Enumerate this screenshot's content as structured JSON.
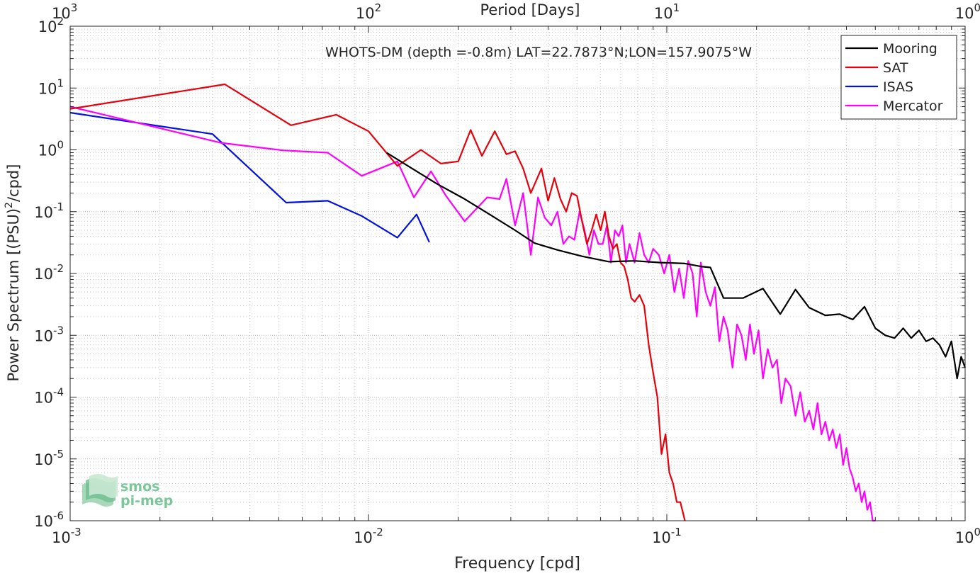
{
  "chart_data": {
    "type": "line",
    "title": "WHOTS-DM (depth =-0.8m) LAT=22.7873°N;LON=157.9075°W",
    "xlabel": "Frequency [cpd]",
    "ylabel": "Power Spectrum [(PSU)^2/cpd]",
    "ylabel_base": "Power Spectrum [(PSU)",
    "ylabel_sup": "2",
    "ylabel_tail": "/cpd]",
    "x2label": "Period [Days]",
    "xscale": "log",
    "yscale": "log",
    "xlim": [
      0.001,
      1
    ],
    "ylim": [
      1e-06,
      100
    ],
    "grid": true,
    "legend_position": "top-right",
    "x_ticks": [
      {
        "value": 0.001,
        "mant": "10",
        "exp": "-3"
      },
      {
        "value": 0.01,
        "mant": "10",
        "exp": "-2"
      },
      {
        "value": 0.1,
        "mant": "10",
        "exp": "-1"
      },
      {
        "value": 1,
        "mant": "10",
        "exp": "0"
      }
    ],
    "x2_ticks": [
      {
        "value": 0.001,
        "mant": "10",
        "exp": "3"
      },
      {
        "value": 0.01,
        "mant": "10",
        "exp": "2"
      },
      {
        "value": 0.1,
        "mant": "10",
        "exp": "1"
      },
      {
        "value": 1,
        "mant": "10",
        "exp": "0"
      }
    ],
    "y_ticks": [
      {
        "value": 1e-06,
        "mant": "10",
        "exp": "-6"
      },
      {
        "value": 1e-05,
        "mant": "10",
        "exp": "-5"
      },
      {
        "value": 0.0001,
        "mant": "10",
        "exp": "-4"
      },
      {
        "value": 0.001,
        "mant": "10",
        "exp": "-3"
      },
      {
        "value": 0.01,
        "mant": "10",
        "exp": "-2"
      },
      {
        "value": 0.1,
        "mant": "10",
        "exp": "-1"
      },
      {
        "value": 1,
        "mant": "10",
        "exp": "0"
      },
      {
        "value": 10,
        "mant": "10",
        "exp": "1"
      },
      {
        "value": 100,
        "mant": "10",
        "exp": "2"
      }
    ],
    "series": [
      {
        "name": "Mooring",
        "color": "#000000",
        "x": [
          0.0115,
          0.014,
          0.017,
          0.021,
          0.026,
          0.031,
          0.036,
          0.043,
          0.052,
          0.064,
          0.078,
          0.095,
          0.115,
          0.13,
          0.14,
          0.155,
          0.18,
          0.21,
          0.24,
          0.27,
          0.3,
          0.34,
          0.38,
          0.42,
          0.46,
          0.5,
          0.54,
          0.58,
          0.62,
          0.66,
          0.7,
          0.74,
          0.78,
          0.82,
          0.86,
          0.9,
          0.94,
          0.97,
          1.0
        ],
        "y": [
          0.9,
          0.5,
          0.28,
          0.16,
          0.085,
          0.05,
          0.031,
          0.024,
          0.019,
          0.0155,
          0.016,
          0.015,
          0.0145,
          0.013,
          0.0125,
          0.004,
          0.004,
          0.0057,
          0.0022,
          0.0055,
          0.0028,
          0.0021,
          0.0022,
          0.0018,
          0.0029,
          0.0013,
          0.001,
          0.0009,
          0.0013,
          0.0009,
          0.0012,
          0.0008,
          0.0009,
          0.0007,
          0.00045,
          0.0008,
          0.0002,
          0.00045,
          0.0003
        ]
      },
      {
        "name": "SAT",
        "color": "#e8000b",
        "x": [
          0.001,
          0.0033,
          0.0055,
          0.0078,
          0.01,
          0.0125,
          0.015,
          0.0175,
          0.02,
          0.022,
          0.024,
          0.0265,
          0.029,
          0.031,
          0.033,
          0.035,
          0.038,
          0.04,
          0.042,
          0.044,
          0.046,
          0.048,
          0.05,
          0.052,
          0.054,
          0.056,
          0.058,
          0.06,
          0.062,
          0.064,
          0.066,
          0.068,
          0.07,
          0.072,
          0.074,
          0.076,
          0.078,
          0.081,
          0.084,
          0.087,
          0.09,
          0.093,
          0.096,
          0.099,
          0.102,
          0.105,
          0.108,
          0.111,
          0.115
        ],
        "y": [
          4.6,
          11.5,
          2.5,
          3.7,
          2.0,
          0.55,
          1.0,
          0.6,
          0.65,
          2.1,
          0.8,
          2.0,
          0.85,
          0.95,
          0.5,
          0.2,
          0.5,
          0.15,
          0.35,
          0.16,
          0.1,
          0.2,
          0.18,
          0.07,
          0.03,
          0.05,
          0.09,
          0.05,
          0.1,
          0.04,
          0.025,
          0.03,
          0.015,
          0.013,
          0.008,
          0.004,
          0.0035,
          0.0045,
          0.003,
          0.0007,
          0.00025,
          0.0001,
          1.2e-05,
          2.5e-05,
          6e-06,
          4e-06,
          2e-06,
          2e-06,
          1e-06
        ]
      },
      {
        "name": "ISAS",
        "color": "#0011e0",
        "x": [
          0.001,
          0.003,
          0.0053,
          0.0073,
          0.0095,
          0.0125,
          0.0145,
          0.016
        ],
        "y": [
          4.0,
          1.8,
          0.14,
          0.15,
          0.085,
          0.038,
          0.09,
          0.032
        ]
      },
      {
        "name": "Mercator",
        "color": "#ff00ff",
        "x": [
          0.001,
          0.0032,
          0.0052,
          0.0073,
          0.0095,
          0.0125,
          0.0142,
          0.0162,
          0.0182,
          0.021,
          0.025,
          0.0275,
          0.029,
          0.031,
          0.033,
          0.035,
          0.037,
          0.039,
          0.041,
          0.043,
          0.045,
          0.047,
          0.049,
          0.051,
          0.053,
          0.055,
          0.057,
          0.059,
          0.061,
          0.063,
          0.065,
          0.067,
          0.069,
          0.071,
          0.073,
          0.075,
          0.078,
          0.081,
          0.084,
          0.087,
          0.09,
          0.094,
          0.098,
          0.102,
          0.106,
          0.11,
          0.114,
          0.118,
          0.122,
          0.126,
          0.13,
          0.135,
          0.14,
          0.145,
          0.15,
          0.155,
          0.16,
          0.166,
          0.172,
          0.178,
          0.184,
          0.19,
          0.196,
          0.203,
          0.21,
          0.218,
          0.226,
          0.234,
          0.242,
          0.25,
          0.26,
          0.27,
          0.28,
          0.29,
          0.3,
          0.31,
          0.32,
          0.33,
          0.34,
          0.35,
          0.36,
          0.37,
          0.38,
          0.39,
          0.4,
          0.41,
          0.42,
          0.43,
          0.44,
          0.45,
          0.46,
          0.47,
          0.48,
          0.49,
          0.5
        ],
        "y": [
          5.0,
          1.3,
          0.98,
          0.9,
          0.38,
          0.65,
          0.17,
          0.45,
          0.18,
          0.07,
          0.17,
          0.16,
          0.34,
          0.06,
          0.2,
          0.02,
          0.17,
          0.08,
          0.06,
          0.1,
          0.03,
          0.04,
          0.035,
          0.1,
          0.05,
          0.02,
          0.05,
          0.03,
          0.03,
          0.06,
          0.015,
          0.05,
          0.04,
          0.06,
          0.015,
          0.03,
          0.015,
          0.045,
          0.02,
          0.015,
          0.025,
          0.02,
          0.01,
          0.02,
          0.005,
          0.012,
          0.004,
          0.016,
          0.01,
          0.002,
          0.015,
          0.005,
          0.003,
          0.006,
          0.0008,
          0.002,
          0.0012,
          0.0003,
          0.0015,
          0.001,
          0.0004,
          0.0015,
          0.0005,
          0.0012,
          0.0002,
          0.0006,
          0.0003,
          0.0004,
          8e-05,
          0.0002,
          0.00015,
          5e-05,
          0.00012,
          4e-05,
          6e-05,
          3e-05,
          8e-05,
          2.5e-05,
          4e-05,
          2e-05,
          3e-05,
          1.5e-05,
          2.5e-05,
          8e-06,
          1.5e-05,
          7e-06,
          5e-06,
          3e-06,
          4e-06,
          2e-06,
          3e-06,
          1.5e-06,
          2e-06,
          1e-06,
          1e-06
        ]
      }
    ]
  },
  "watermark": {
    "line1": "smos",
    "line2": "pi-mep"
  }
}
